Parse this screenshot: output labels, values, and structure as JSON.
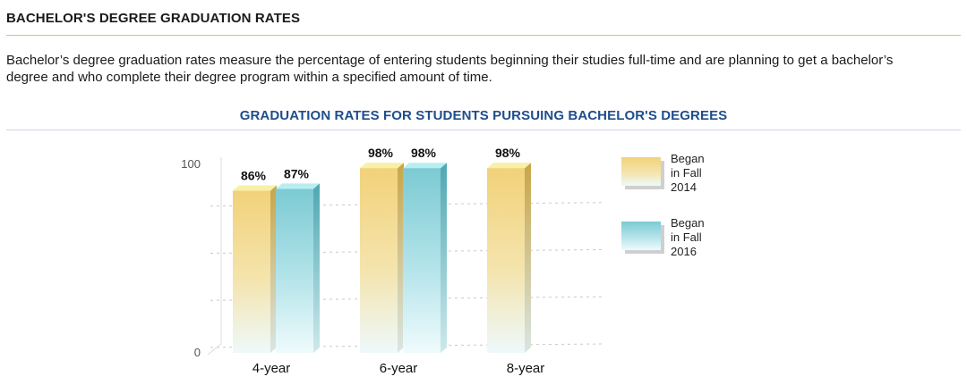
{
  "header": {
    "title": "BACHELOR'S DEGREE GRADUATION RATES",
    "description": "Bachelor’s degree graduation rates measure the percentage of entering students beginning their studies full-time and are planning to get a bachelor’s degree and who complete their degree program within a specified amount of time."
  },
  "colors": {
    "series_2014": "#f2d27a",
    "series_2016": "#86d0d8",
    "title_blue": "#1f4d8c"
  },
  "chart_data": {
    "type": "bar",
    "title": "GRADUATION RATES FOR STUDENTS PURSUING BACHELOR'S DEGREES",
    "categories": [
      "4-year",
      "6-year",
      "8-year"
    ],
    "series": [
      {
        "name": "Began in Fall 2014",
        "legend_lines": [
          "Began",
          "in Fall",
          "2014"
        ],
        "values": [
          86,
          98,
          98
        ],
        "labels": [
          "86%",
          "98%",
          "98%"
        ]
      },
      {
        "name": "Began in Fall 2016",
        "legend_lines": [
          "Began",
          "in Fall",
          "2016"
        ],
        "values": [
          87,
          98,
          null
        ],
        "labels": [
          "87%",
          "98%",
          ""
        ]
      }
    ],
    "y_ticks": [
      "0",
      "100"
    ],
    "ylim": [
      0,
      100
    ],
    "grid": true,
    "legend_position": "right"
  }
}
